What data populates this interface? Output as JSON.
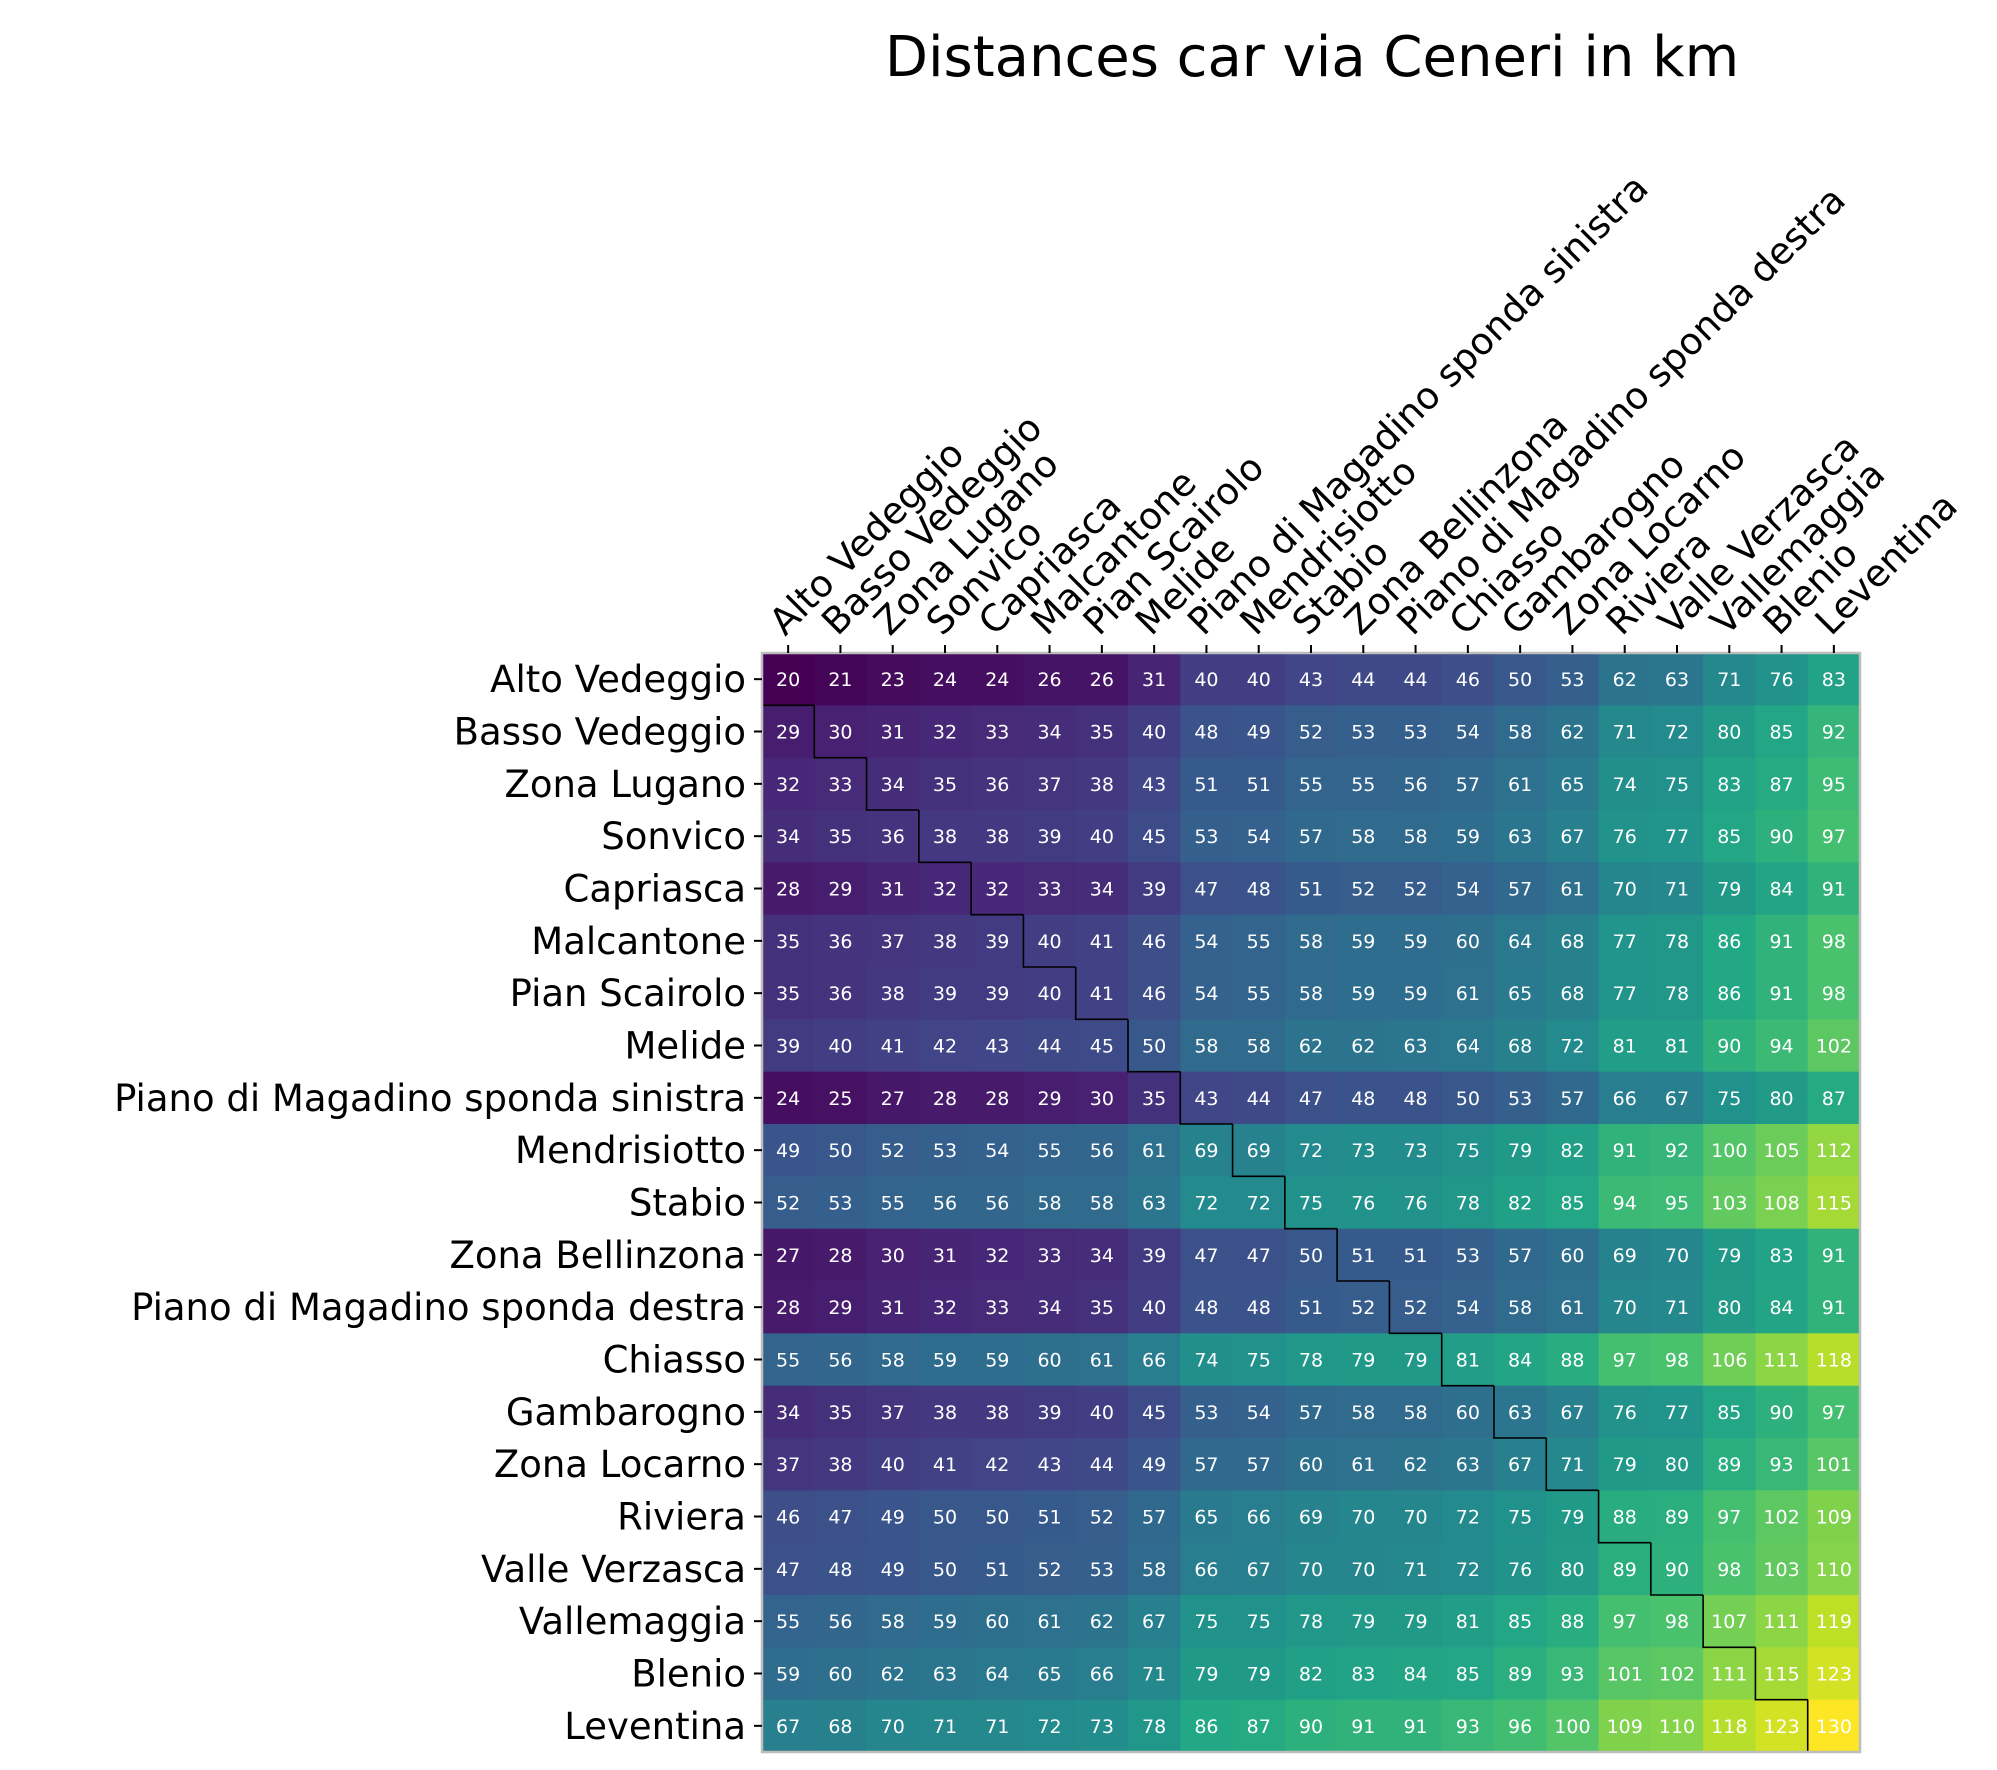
{
  "chart_data": {
    "type": "heatmap",
    "title": "Distances car via Ceneri in km",
    "colormap": "viridis",
    "vmin": 20,
    "vmax": 130,
    "x_tick_position": "top",
    "x_tick_rotation": "45 degrees",
    "grid": false,
    "staircase_outline": "black",
    "row_labels": [
      "Alto Vedeggio",
      "Basso Vedeggio",
      "Zona Lugano",
      "Sonvico",
      "Capriasca",
      "Malcantone",
      "Pian Scairolo",
      "Melide",
      "Piano di Magadino sponda sinistra",
      "Mendrisiotto",
      "Stabio",
      "Zona Bellinzona",
      "Piano di Magadino sponda destra",
      "Chiasso",
      "Gambarogno",
      "Zona Locarno",
      "Riviera",
      "Valle Verzasca",
      "Vallemaggia",
      "Blenio",
      "Leventina"
    ],
    "col_labels": [
      "Alto Vedeggio",
      "Basso Vedeggio",
      "Zona Lugano",
      "Sonvico",
      "Capriasca",
      "Malcantone",
      "Pian Scairolo",
      "Melide",
      "Piano di Magadino sponda sinistra",
      "Mendrisiotto",
      "Stabio",
      "Zona Bellinzona",
      "Piano di Magadino sponda destra",
      "Chiasso",
      "Gambarogno",
      "Zona Locarno",
      "Riviera",
      "Valle Verzasca",
      "Vallemaggia",
      "Blenio",
      "Leventina"
    ],
    "values": [
      [
        20,
        21,
        23,
        24,
        24,
        26,
        26,
        31,
        40,
        40,
        43,
        44,
        44,
        46,
        50,
        53,
        62,
        63,
        71,
        76,
        83
      ],
      [
        29,
        30,
        31,
        32,
        33,
        34,
        35,
        40,
        48,
        49,
        52,
        53,
        53,
        54,
        58,
        62,
        71,
        72,
        80,
        85,
        92
      ],
      [
        32,
        33,
        34,
        35,
        36,
        37,
        38,
        43,
        51,
        51,
        55,
        55,
        56,
        57,
        61,
        65,
        74,
        75,
        83,
        87,
        95
      ],
      [
        34,
        35,
        36,
        38,
        38,
        39,
        40,
        45,
        53,
        54,
        57,
        58,
        58,
        59,
        63,
        67,
        76,
        77,
        85,
        90,
        97
      ],
      [
        28,
        29,
        31,
        32,
        32,
        33,
        34,
        39,
        47,
        48,
        51,
        52,
        52,
        54,
        57,
        61,
        70,
        71,
        79,
        84,
        91
      ],
      [
        35,
        36,
        37,
        38,
        39,
        40,
        41,
        46,
        54,
        55,
        58,
        59,
        59,
        60,
        64,
        68,
        77,
        78,
        86,
        91,
        98
      ],
      [
        35,
        36,
        38,
        39,
        39,
        40,
        41,
        46,
        54,
        55,
        58,
        59,
        59,
        61,
        65,
        68,
        77,
        78,
        86,
        91,
        98
      ],
      [
        39,
        40,
        41,
        42,
        43,
        44,
        45,
        50,
        58,
        58,
        62,
        62,
        63,
        64,
        68,
        72,
        81,
        81,
        90,
        94,
        102
      ],
      [
        24,
        25,
        27,
        28,
        28,
        29,
        30,
        35,
        43,
        44,
        47,
        48,
        48,
        50,
        53,
        57,
        66,
        67,
        75,
        80,
        87
      ],
      [
        49,
        50,
        52,
        53,
        54,
        55,
        56,
        61,
        69,
        69,
        72,
        73,
        73,
        75,
        79,
        82,
        91,
        92,
        100,
        105,
        112
      ],
      [
        52,
        53,
        55,
        56,
        56,
        58,
        58,
        63,
        72,
        72,
        75,
        76,
        76,
        78,
        82,
        85,
        94,
        95,
        103,
        108,
        115
      ],
      [
        27,
        28,
        30,
        31,
        32,
        33,
        34,
        39,
        47,
        47,
        50,
        51,
        51,
        53,
        57,
        60,
        69,
        70,
        79,
        83,
        91
      ],
      [
        28,
        29,
        31,
        32,
        33,
        34,
        35,
        40,
        48,
        48,
        51,
        52,
        52,
        54,
        58,
        61,
        70,
        71,
        80,
        84,
        91
      ],
      [
        55,
        56,
        58,
        59,
        59,
        60,
        61,
        66,
        74,
        75,
        78,
        79,
        79,
        81,
        84,
        88,
        97,
        98,
        106,
        111,
        118
      ],
      [
        34,
        35,
        37,
        38,
        38,
        39,
        40,
        45,
        53,
        54,
        57,
        58,
        58,
        60,
        63,
        67,
        76,
        77,
        85,
        90,
        97
      ],
      [
        37,
        38,
        40,
        41,
        42,
        43,
        44,
        49,
        57,
        57,
        60,
        61,
        62,
        63,
        67,
        71,
        79,
        80,
        89,
        93,
        101
      ],
      [
        46,
        47,
        49,
        50,
        50,
        51,
        52,
        57,
        65,
        66,
        69,
        70,
        70,
        72,
        75,
        79,
        88,
        89,
        97,
        102,
        109
      ],
      [
        47,
        48,
        49,
        50,
        51,
        52,
        53,
        58,
        66,
        67,
        70,
        70,
        71,
        72,
        76,
        80,
        89,
        90,
        98,
        103,
        110
      ],
      [
        55,
        56,
        58,
        59,
        60,
        61,
        62,
        67,
        75,
        75,
        78,
        79,
        79,
        81,
        85,
        88,
        97,
        98,
        107,
        111,
        119
      ],
      [
        59,
        60,
        62,
        63,
        64,
        65,
        66,
        71,
        79,
        79,
        82,
        83,
        84,
        85,
        89,
        93,
        101,
        102,
        111,
        115,
        123
      ],
      [
        67,
        68,
        70,
        71,
        71,
        72,
        73,
        78,
        86,
        87,
        90,
        91,
        91,
        93,
        96,
        100,
        109,
        110,
        118,
        123,
        130
      ]
    ]
  }
}
